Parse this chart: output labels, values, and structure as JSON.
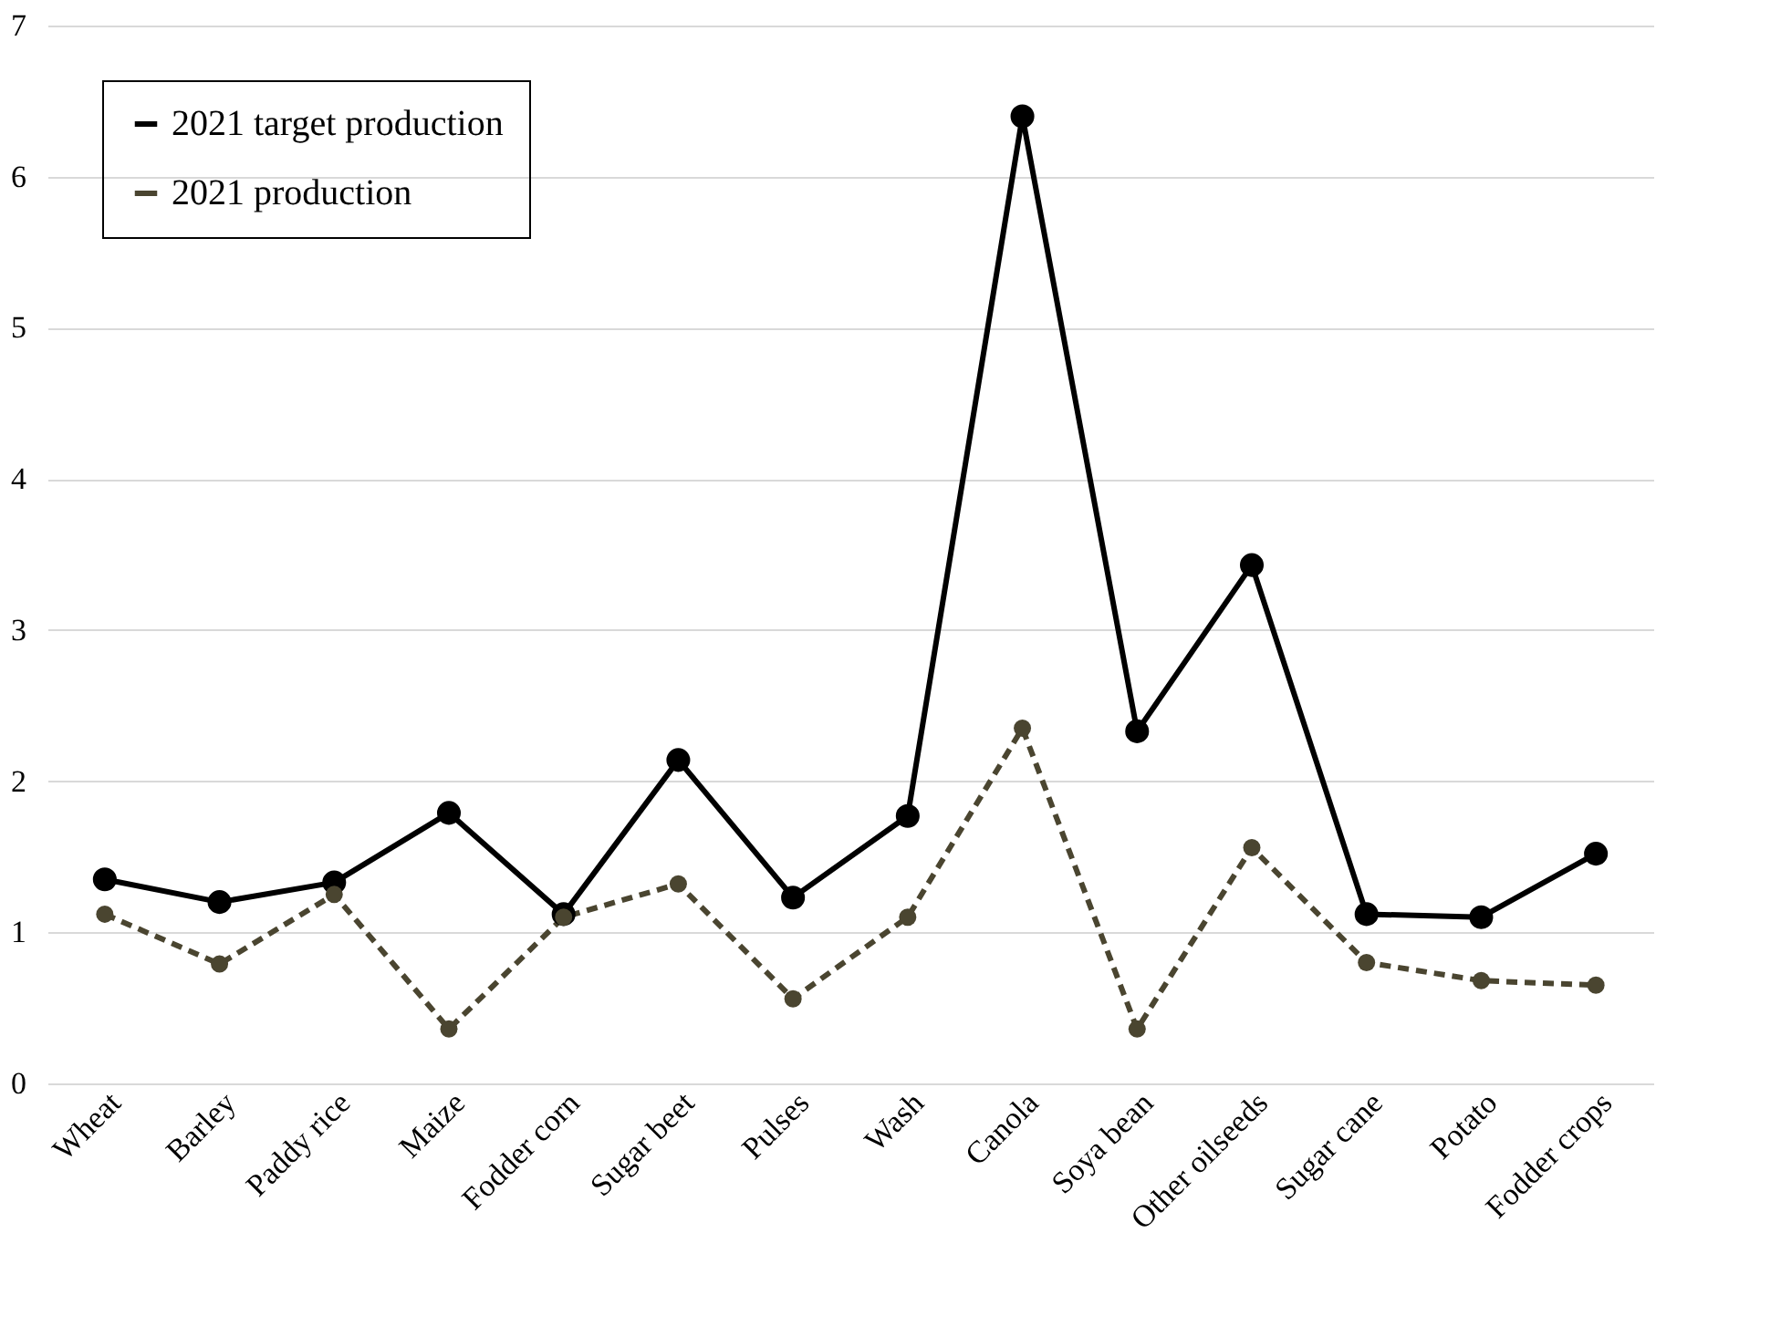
{
  "chart_data": {
    "type": "line",
    "categories": [
      "Wheat",
      "Barley",
      "Paddy rice",
      "Maize",
      "Fodder corn",
      "Sugar beet",
      "Pulses",
      "Wash",
      "Canola",
      "Soya bean",
      "Other oilseeds",
      "Sugar cane",
      "Potato",
      "Fodder crops"
    ],
    "series": [
      {
        "name": "2021 target production",
        "color": "#000000",
        "line_style": "solid",
        "marker": "circle",
        "values": [
          1.35,
          1.2,
          1.33,
          1.79,
          1.12,
          2.14,
          1.23,
          1.77,
          6.4,
          2.33,
          3.43,
          1.12,
          1.1,
          1.52
        ]
      },
      {
        "name": "2021 production",
        "color": "#4a4530",
        "line_style": "dashed",
        "marker": "circle",
        "values": [
          1.12,
          0.79,
          1.25,
          0.36,
          1.1,
          1.32,
          0.56,
          1.1,
          2.35,
          0.36,
          1.56,
          0.8,
          0.68,
          0.65
        ]
      }
    ],
    "ylim": [
      0,
      7
    ],
    "yticks": [
      0,
      1,
      2,
      3,
      4,
      5,
      6,
      7
    ],
    "grid": "y",
    "legend": "top left"
  }
}
